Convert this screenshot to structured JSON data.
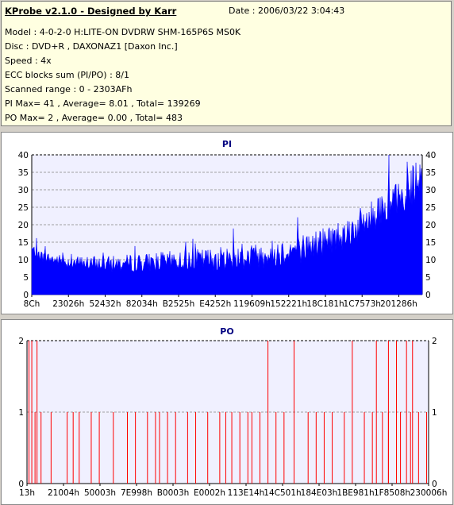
{
  "header": {
    "title": "KProbe v2.1.0 - Designed by Karr",
    "date": "Date : 2006/03/22 3:04:43",
    "lines": [
      "Model : 4-0-2-0 H:LITE-ON DVDRW SHM-165P6S MS0K",
      "Disc : DVD+R , DAXONAZ1 [Daxon Inc.]",
      "Speed : 4x",
      "ECC blocks sum (PI/PO) : 8/1",
      "Scanned range : 0 - 2303AFh",
      "PI Max= 41 , Average= 8.01 , Total= 139269",
      "PO Max= 2 , Average= 0.00 , Total= 483"
    ]
  },
  "colors": {
    "pi_fill": "#0000ff",
    "po_line": "#ff0000",
    "plot_bg": "#f0f0ff",
    "grid": "#a0a0a0",
    "title": "#000080"
  },
  "chart_data": [
    {
      "type": "bar",
      "title": "PI",
      "xlabel": "",
      "ylabel": "",
      "ylim": [
        0,
        40
      ],
      "y_ticks": [
        0,
        5,
        10,
        15,
        20,
        25,
        30,
        35,
        40
      ],
      "x_ticks": [
        "8Ch",
        "23026h",
        "52432h",
        "82034h",
        "B2525h",
        "E4252h",
        "119609h",
        "152221h",
        "18C181h",
        "1C7573h",
        "201286h"
      ],
      "grid": true,
      "profile_x": [
        0,
        0.02,
        0.05,
        0.1,
        0.2,
        0.3,
        0.4,
        0.5,
        0.6,
        0.65,
        0.7,
        0.75,
        0.8,
        0.85,
        0.9,
        0.95,
        1.0
      ],
      "profile_y": [
        13,
        11,
        10,
        9,
        8.5,
        9,
        9.5,
        10,
        11,
        12,
        13,
        15,
        17,
        20,
        24,
        28,
        33
      ],
      "peaks": [
        40,
        37,
        38,
        41
      ]
    },
    {
      "type": "bar",
      "title": "PO",
      "xlabel": "",
      "ylabel": "",
      "ylim": [
        0,
        2
      ],
      "y_ticks": [
        0,
        1,
        2
      ],
      "x_ticks": [
        "13h",
        "21004h",
        "50003h",
        "7E998h",
        "B0003h",
        "E0002h",
        "113E14h",
        "14C501h",
        "184E03h",
        "1BE981h",
        "1F8508h",
        "230006h"
      ],
      "grid": true,
      "x_range": [
        0,
        1
      ],
      "po2_x": [
        0.005,
        0.012,
        0.025,
        0.6,
        0.665,
        0.81,
        0.87,
        0.9,
        0.92,
        0.945,
        0.96
      ],
      "po1_x": [
        0.02,
        0.035,
        0.06,
        0.1,
        0.115,
        0.13,
        0.16,
        0.18,
        0.215,
        0.25,
        0.27,
        0.3,
        0.32,
        0.33,
        0.35,
        0.37,
        0.4,
        0.42,
        0.45,
        0.48,
        0.495,
        0.51,
        0.53,
        0.55,
        0.56,
        0.58,
        0.62,
        0.64,
        0.7,
        0.72,
        0.74,
        0.76,
        0.79,
        0.84,
        0.86,
        0.885,
        0.9,
        0.93,
        0.955,
        0.975,
        0.995
      ]
    }
  ]
}
